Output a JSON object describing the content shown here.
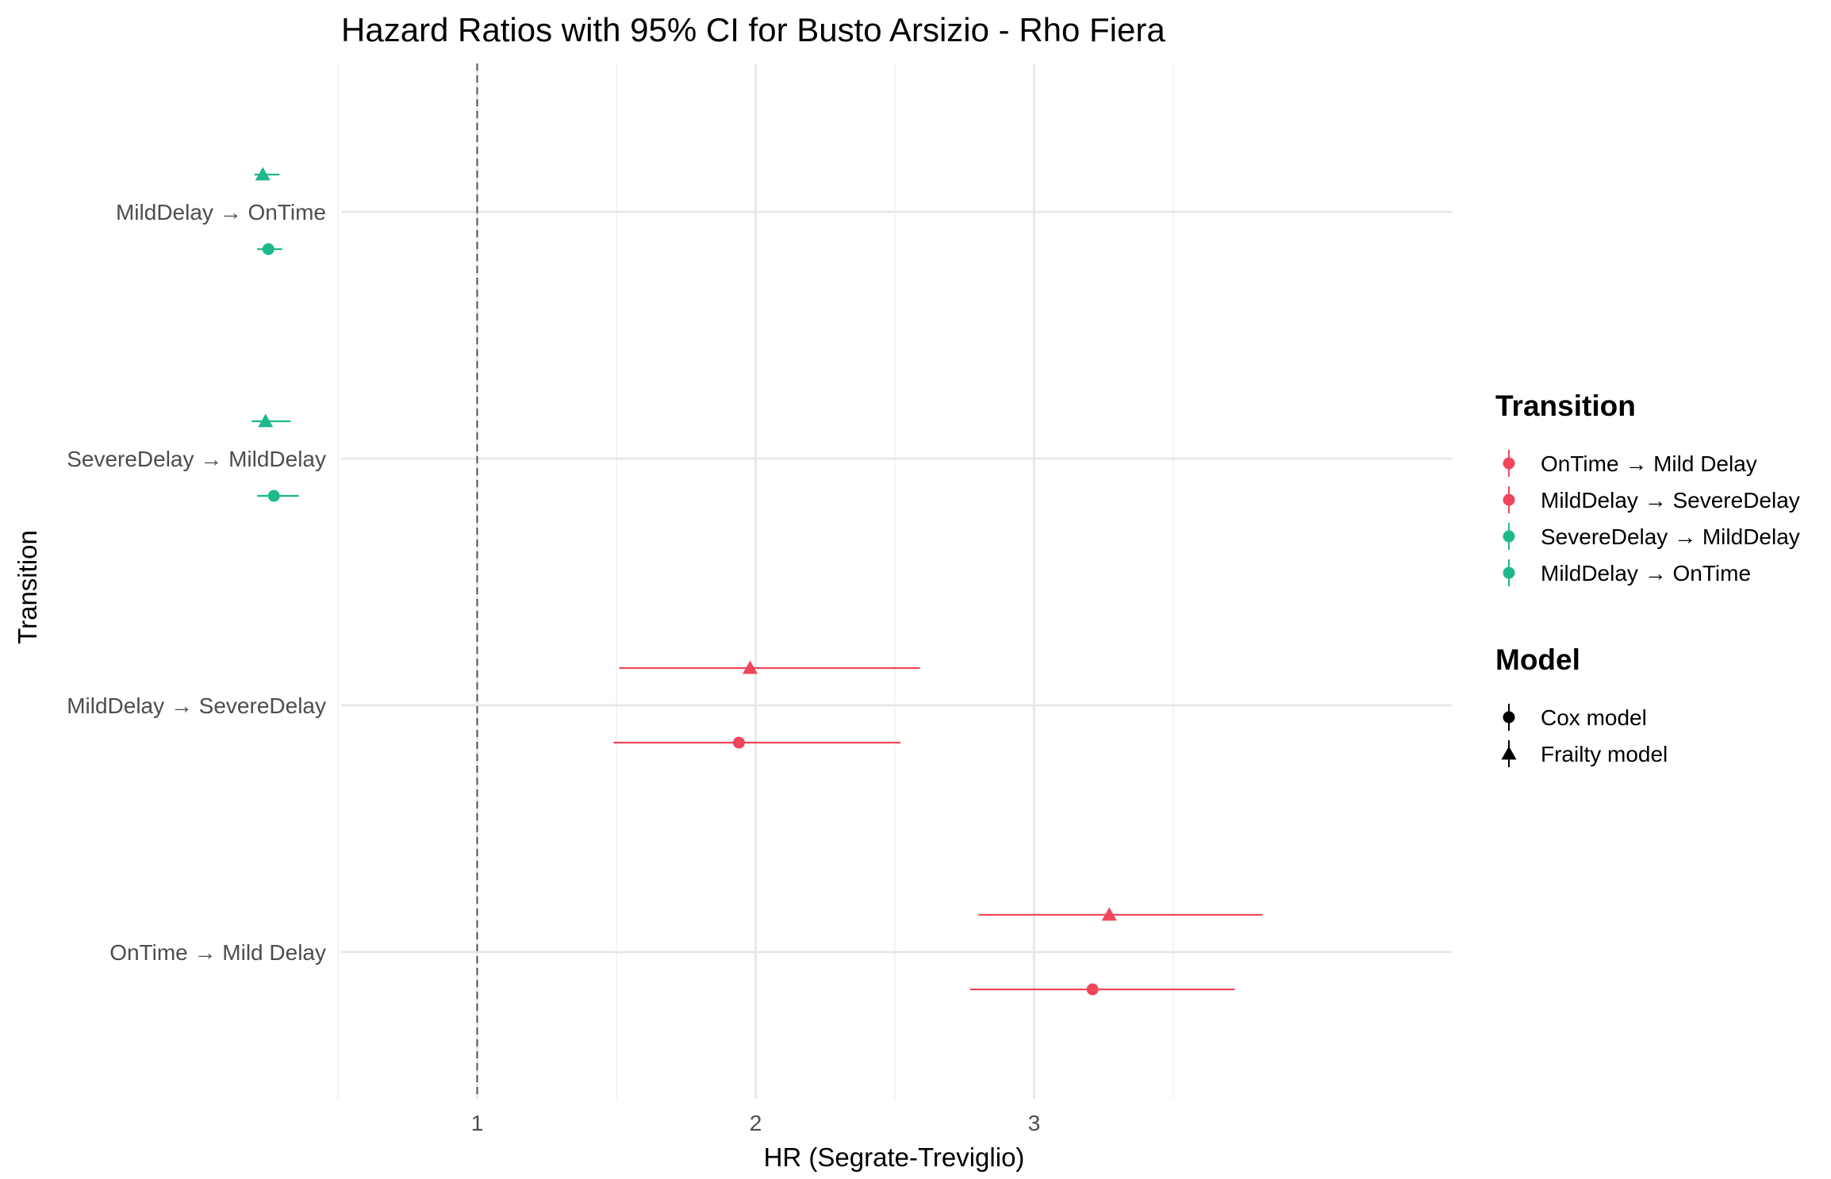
{
  "chart_data": {
    "type": "scatter",
    "title": "Hazard Ratios with 95% CI for Busto Arsizio - Rho Fiera",
    "xlabel": "HR (Segrate-Treviglio)",
    "ylabel": "Transition",
    "xlim": [
      0.0,
      3.98
    ],
    "x_ticks": [
      1,
      2,
      3
    ],
    "reference_line_x": 1,
    "categories": [
      "OnTime → Mild Delay",
      "MildDelay → SevereDelay",
      "SevereDelay → MildDelay",
      "MildDelay → OnTime"
    ],
    "grid": true,
    "legend_position": "right",
    "legend": {
      "color_title": "Transition",
      "color_entries": [
        {
          "label": "OnTime → Mild Delay",
          "color": "#F0465C"
        },
        {
          "label": "MildDelay → SevereDelay",
          "color": "#F0465C"
        },
        {
          "label": "SevereDelay → MildDelay",
          "color": "#1CB98C"
        },
        {
          "label": "MildDelay → OnTime",
          "color": "#1CB98C"
        }
      ],
      "shape_title": "Model",
      "shape_entries": [
        {
          "label": "Cox model",
          "shape": "circle"
        },
        {
          "label": "Frailty model",
          "shape": "triangle"
        }
      ]
    },
    "series": [
      {
        "name": "Cox model",
        "shape": "circle",
        "points": [
          {
            "category": "OnTime → Mild Delay",
            "hr": 3.21,
            "lower": 2.77,
            "upper": 3.72
          },
          {
            "category": "MildDelay → SevereDelay",
            "hr": 1.94,
            "lower": 1.49,
            "upper": 2.52
          },
          {
            "category": "SevereDelay → MildDelay",
            "hr": 0.27,
            "lower": 0.21,
            "upper": 0.36
          },
          {
            "category": "MildDelay → OnTime",
            "hr": 0.25,
            "lower": 0.21,
            "upper": 0.3
          }
        ]
      },
      {
        "name": "Frailty model",
        "shape": "triangle",
        "points": [
          {
            "category": "OnTime → Mild Delay",
            "hr": 3.27,
            "lower": 2.8,
            "upper": 3.82
          },
          {
            "category": "MildDelay → SevereDelay",
            "hr": 1.98,
            "lower": 1.51,
            "upper": 2.59
          },
          {
            "category": "SevereDelay → MildDelay",
            "hr": 0.24,
            "lower": 0.19,
            "upper": 0.33
          },
          {
            "category": "MildDelay → OnTime",
            "hr": 0.23,
            "lower": 0.2,
            "upper": 0.29
          }
        ]
      }
    ]
  }
}
